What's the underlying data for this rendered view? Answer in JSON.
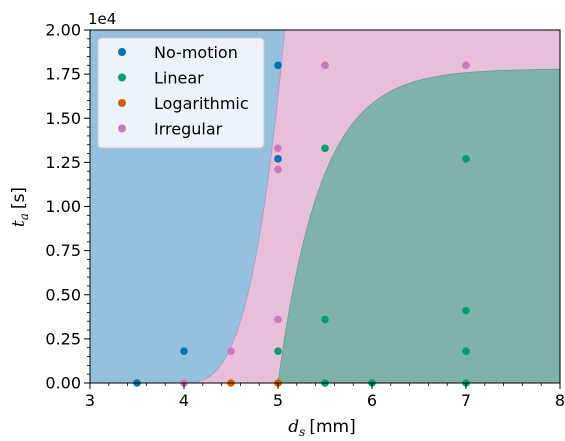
{
  "chart_data": {
    "type": "scatter",
    "xlabel_main": "d",
    "xlabel_sub": "s",
    "xlabel_unit": "[mm]",
    "ylabel_main": "t",
    "ylabel_sub": "a",
    "ylabel_unit": "[s]",
    "y_offset_label": "1e4",
    "xlim": [
      3,
      8
    ],
    "ylim": [
      0,
      20000
    ],
    "x_ticks": [
      3,
      4,
      5,
      6,
      7,
      8
    ],
    "x_tick_labels": [
      "3",
      "4",
      "5",
      "6",
      "7",
      "8"
    ],
    "y_ticks": [
      0,
      2500,
      5000,
      7500,
      10000,
      12500,
      15000,
      17500,
      20000
    ],
    "y_tick_labels": [
      "0.00",
      "0.25",
      "0.50",
      "0.75",
      "1.00",
      "1.25",
      "1.50",
      "1.75",
      "2.00"
    ],
    "legend_position": "top-left",
    "regions": [
      {
        "class": "No-motion",
        "color": "#95c1de"
      },
      {
        "class": "Irregular",
        "color": "#e8bfd9"
      },
      {
        "class": "Linear",
        "color": "#7fb3a9"
      }
    ],
    "series": [
      {
        "name": "No-motion",
        "color": "#0173b2",
        "points": [
          [
            3.5,
            0
          ],
          [
            4,
            1800
          ],
          [
            5,
            18000
          ],
          [
            5,
            12700
          ]
        ]
      },
      {
        "name": "Linear",
        "color": "#029e73",
        "points": [
          [
            5,
            1800
          ],
          [
            5.5,
            3600
          ],
          [
            5.5,
            13300
          ],
          [
            5.5,
            0
          ],
          [
            6,
            0
          ],
          [
            7,
            0
          ],
          [
            7,
            1800
          ],
          [
            7,
            4100
          ],
          [
            7,
            12700
          ]
        ]
      },
      {
        "name": "Logarithmic",
        "color": "#d55e00",
        "points": [
          [
            4.5,
            0
          ],
          [
            5,
            0
          ]
        ]
      },
      {
        "name": "Irregular",
        "color": "#cc78bc",
        "points": [
          [
            4,
            0
          ],
          [
            4.5,
            1800
          ],
          [
            5,
            3600
          ],
          [
            5,
            12100
          ],
          [
            5,
            13300
          ],
          [
            5.5,
            18000
          ],
          [
            7,
            18000
          ]
        ]
      }
    ]
  }
}
